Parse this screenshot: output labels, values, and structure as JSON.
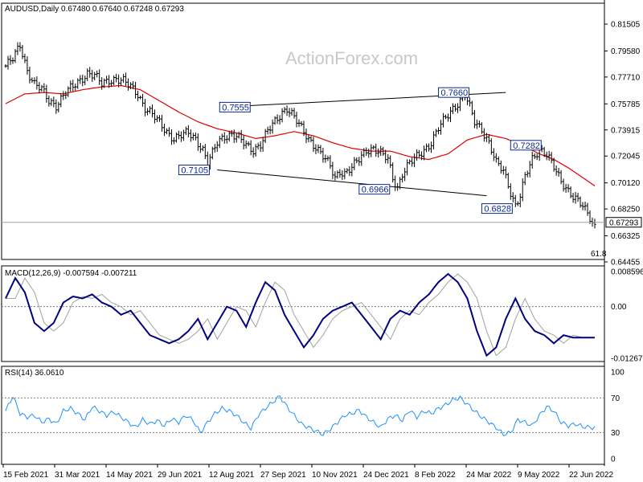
{
  "chart_data": [
    {
      "type": "ohlc",
      "symbol_header": "AUDUSD,Daily",
      "ohlc_header": [
        "0.67480",
        "0.67640",
        "0.67248",
        "0.67293"
      ],
      "watermark": "ActionForex.com",
      "y_ticks": [
        "0.81505",
        "0.79580",
        "0.77710",
        "0.75785",
        "0.73915",
        "0.72045",
        "0.70120",
        "0.68250",
        "0.66325",
        "0.64455"
      ],
      "y_tick_values": [
        0.81505,
        0.7958,
        0.7771,
        0.75785,
        0.73915,
        0.72045,
        0.7012,
        0.6825,
        0.66325,
        0.64455
      ],
      "x_labels": [
        "15 Feb 2021",
        "31 Mar 2021",
        "14 May 2021",
        "29 Jun 2021",
        "12 Aug 2021",
        "27 Sep 2021",
        "10 Nov 2021",
        "24 Dec 2021",
        "8 Feb 2022",
        "24 Mar 2022",
        "9 May 2022",
        "22 Jun 2022"
      ],
      "current_price": "0.67293",
      "fib_label": "61.8",
      "price_labels": [
        {
          "text": "0.7555",
          "value": 0.7555
        },
        {
          "text": "0.7660",
          "value": 0.766
        },
        {
          "text": "0.7105",
          "value": 0.7105
        },
        {
          "text": "0.6966",
          "value": 0.6966
        },
        {
          "text": "0.7282",
          "value": 0.7282
        },
        {
          "text": "0.6828",
          "value": 0.6828
        }
      ],
      "close_path": [
        [
          0,
          0.785
        ],
        [
          3,
          0.79
        ],
        [
          6,
          0.8
        ],
        [
          9,
          0.782
        ],
        [
          12,
          0.772
        ],
        [
          15,
          0.768
        ],
        [
          18,
          0.76
        ],
        [
          21,
          0.757
        ],
        [
          25,
          0.766
        ],
        [
          28,
          0.77
        ],
        [
          31,
          0.775
        ],
        [
          34,
          0.78
        ],
        [
          37,
          0.778
        ],
        [
          40,
          0.772
        ],
        [
          43,
          0.775
        ],
        [
          46,
          0.776
        ],
        [
          49,
          0.774
        ],
        [
          52,
          0.77
        ],
        [
          55,
          0.765
        ],
        [
          58,
          0.755
        ],
        [
          61,
          0.75
        ],
        [
          64,
          0.744
        ],
        [
          67,
          0.738
        ],
        [
          70,
          0.733
        ],
        [
          73,
          0.735
        ],
        [
          76,
          0.737
        ],
        [
          79,
          0.733
        ],
        [
          82,
          0.725
        ],
        [
          84,
          0.715
        ],
        [
          86,
          0.722
        ],
        [
          88,
          0.73
        ],
        [
          91,
          0.735
        ],
        [
          94,
          0.736
        ],
        [
          97,
          0.733
        ],
        [
          100,
          0.728
        ],
        [
          103,
          0.725
        ],
        [
          106,
          0.729
        ],
        [
          109,
          0.738
        ],
        [
          112,
          0.745
        ],
        [
          115,
          0.752
        ],
        [
          117,
          0.755
        ],
        [
          120,
          0.748
        ],
        [
          123,
          0.74
        ],
        [
          126,
          0.733
        ],
        [
          129,
          0.727
        ],
        [
          132,
          0.72
        ],
        [
          135,
          0.713
        ],
        [
          137,
          0.705
        ],
        [
          139,
          0.71
        ],
        [
          141,
          0.708
        ],
        [
          144,
          0.712
        ],
        [
          147,
          0.718
        ],
        [
          150,
          0.725
        ],
        [
          153,
          0.726
        ],
        [
          156,
          0.722
        ],
        [
          159,
          0.718
        ],
        [
          161,
          0.705
        ],
        [
          163,
          0.698
        ],
        [
          165,
          0.708
        ],
        [
          168,
          0.715
        ],
        [
          171,
          0.72
        ],
        [
          174,
          0.725
        ],
        [
          177,
          0.73
        ],
        [
          180,
          0.74
        ],
        [
          183,
          0.748
        ],
        [
          186,
          0.755
        ],
        [
          189,
          0.76
        ],
        [
          191,
          0.764
        ],
        [
          193,
          0.755
        ],
        [
          195,
          0.745
        ],
        [
          198,
          0.74
        ],
        [
          201,
          0.73
        ],
        [
          204,
          0.715
        ],
        [
          207,
          0.71
        ],
        [
          210,
          0.695
        ],
        [
          212,
          0.685
        ],
        [
          214,
          0.692
        ],
        [
          216,
          0.705
        ],
        [
          219,
          0.718
        ],
        [
          222,
          0.726
        ],
        [
          225,
          0.722
        ],
        [
          228,
          0.712
        ],
        [
          231,
          0.702
        ],
        [
          234,
          0.696
        ],
        [
          237,
          0.69
        ],
        [
          240,
          0.684
        ],
        [
          243,
          0.676
        ],
        [
          245,
          0.67
        ]
      ],
      "ma_path": [
        [
          0,
          0.758
        ],
        [
          8,
          0.765
        ],
        [
          16,
          0.766
        ],
        [
          24,
          0.765
        ],
        [
          32,
          0.768
        ],
        [
          40,
          0.77
        ],
        [
          48,
          0.771
        ],
        [
          56,
          0.768
        ],
        [
          64,
          0.76
        ],
        [
          72,
          0.752
        ],
        [
          80,
          0.745
        ],
        [
          88,
          0.74
        ],
        [
          96,
          0.737
        ],
        [
          104,
          0.733
        ],
        [
          112,
          0.735
        ],
        [
          120,
          0.738
        ],
        [
          128,
          0.735
        ],
        [
          136,
          0.73
        ],
        [
          144,
          0.726
        ],
        [
          152,
          0.724
        ],
        [
          160,
          0.724
        ],
        [
          168,
          0.72
        ],
        [
          176,
          0.718
        ],
        [
          184,
          0.722
        ],
        [
          192,
          0.732
        ],
        [
          200,
          0.736
        ],
        [
          208,
          0.733
        ],
        [
          216,
          0.727
        ],
        [
          222,
          0.722
        ],
        [
          228,
          0.718
        ],
        [
          234,
          0.712
        ],
        [
          240,
          0.705
        ],
        [
          245,
          0.699
        ]
      ],
      "trendlines": [
        {
          "from": [
            89,
            0.7555
          ],
          "to": [
            208,
            0.766
          ]
        },
        {
          "from": [
            88,
            0.7105
          ],
          "to": [
            200,
            0.692
          ]
        }
      ]
    },
    {
      "type": "line",
      "header": "MACD(12,26,9) -0.007594 -0.007211",
      "y_ticks": [
        "0.008596",
        "0.00",
        "-0.01267"
      ],
      "y_tick_values": [
        0.008596,
        0.0,
        -0.01267
      ],
      "series": [
        {
          "values_x": [
            0,
            4,
            8,
            12,
            16,
            20,
            24,
            28,
            32,
            36,
            40,
            44,
            48,
            52,
            56,
            60,
            64,
            68,
            72,
            76,
            80,
            84,
            88,
            92,
            96,
            100,
            104,
            108,
            112,
            116,
            120,
            124,
            128,
            132,
            136,
            140,
            144,
            148,
            152,
            156,
            160,
            164,
            168,
            172,
            176,
            180,
            184,
            188,
            192,
            196,
            200,
            204,
            208,
            212,
            216,
            220,
            224,
            228,
            232,
            236,
            240,
            244
          ],
          "values": [
            0.002,
            0.007,
            0.0035,
            -0.004,
            -0.006,
            -0.004,
            0.001,
            0.0025,
            0.002,
            0.003,
            0.001,
            0.0,
            -0.002,
            -0.001,
            -0.004,
            -0.007,
            -0.008,
            -0.009,
            -0.008,
            -0.006,
            -0.003,
            -0.008,
            -0.004,
            0.0,
            -0.001,
            -0.005,
            0.001,
            0.006,
            0.004,
            -0.002,
            -0.006,
            -0.01,
            -0.007,
            -0.003,
            -0.001,
            0.0,
            0.001,
            -0.002,
            -0.005,
            -0.008,
            -0.003,
            -0.001,
            -0.002,
            0.001,
            0.003,
            0.006,
            0.008,
            0.006,
            0.002,
            -0.006,
            -0.012,
            -0.01,
            -0.003,
            0.002,
            -0.003,
            -0.006,
            -0.007,
            -0.009,
            -0.007,
            -0.0076,
            -0.0076,
            -0.0076
          ]
        }
      ]
    },
    {
      "type": "line",
      "header": "RSI(14) 36.0610",
      "y_ticks": [
        "100",
        "70",
        "30",
        "0"
      ],
      "y_tick_values": [
        100,
        70,
        30,
        0
      ],
      "series": [
        {
          "values_x": [
            0,
            3,
            6,
            9,
            12,
            15,
            18,
            21,
            24,
            27,
            30,
            33,
            36,
            39,
            42,
            45,
            48,
            51,
            54,
            57,
            60,
            63,
            66,
            69,
            72,
            75,
            78,
            81,
            84,
            87,
            90,
            93,
            96,
            99,
            102,
            105,
            108,
            111,
            114,
            117,
            120,
            123,
            126,
            129,
            132,
            135,
            138,
            141,
            144,
            147,
            150,
            153,
            156,
            159,
            162,
            165,
            168,
            171,
            174,
            177,
            180,
            183,
            186,
            189,
            192,
            195,
            198,
            201,
            204,
            207,
            210,
            213,
            216,
            219,
            222,
            225,
            228,
            231,
            234,
            237,
            240,
            243,
            245
          ],
          "values": [
            55,
            72,
            52,
            48,
            50,
            42,
            46,
            40,
            55,
            58,
            52,
            45,
            60,
            55,
            50,
            54,
            48,
            42,
            36,
            45,
            40,
            44,
            38,
            46,
            42,
            50,
            44,
            30,
            42,
            52,
            58,
            55,
            50,
            42,
            35,
            50,
            58,
            65,
            72,
            60,
            50,
            40,
            36,
            32,
            28,
            34,
            42,
            50,
            52,
            56,
            48,
            42,
            36,
            46,
            50,
            44,
            56,
            48,
            55,
            52,
            58,
            62,
            68,
            70,
            63,
            55,
            48,
            42,
            36,
            28,
            30,
            45,
            42,
            38,
            50,
            60,
            55,
            42,
            38,
            40,
            37,
            36,
            36
          ]
        }
      ]
    }
  ]
}
